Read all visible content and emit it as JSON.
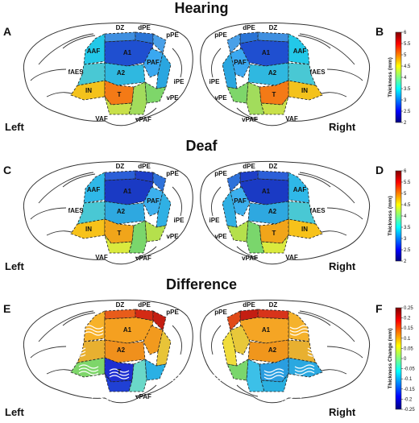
{
  "sections": [
    {
      "title": "Hearing"
    },
    {
      "title": "Deaf"
    },
    {
      "title": "Difference"
    }
  ],
  "panels": [
    {
      "label": "A",
      "hemisphere": "Left",
      "condition": "hearing",
      "regions": {
        "DZ": {
          "label": "DZ",
          "color": "#3f8fe0"
        },
        "dPE": {
          "label": "dPE",
          "color": "#2a74d6"
        },
        "pPE": {
          "label": "pPE",
          "color": "#4aa0e8"
        },
        "AAF": {
          "label": "AAF",
          "color": "#23c8e8"
        },
        "A1": {
          "label": "A1",
          "color": "#1f4fd0"
        },
        "PAF": {
          "label": "PAF",
          "color": "#3aa8f0"
        },
        "A2": {
          "label": "A2",
          "color": "#2fb8e0"
        },
        "iPE": {
          "label": "iPE",
          "color": "#2aa6e0"
        },
        "IN": {
          "label": "IN",
          "color": "#f4c21c"
        },
        "T": {
          "label": "T",
          "color": "#f47a16"
        },
        "vPE": {
          "label": "vPE",
          "color": "#7ed66a"
        },
        "VAF": {
          "label": "VAF",
          "color": "#c8e04a"
        },
        "vPAF": {
          "label": "vPAF",
          "color": "#a2dc5c"
        },
        "fAES": {
          "label": "fAES",
          "color": "#49c8d4"
        }
      }
    },
    {
      "label": "B",
      "hemisphere": "Right",
      "condition": "hearing",
      "regions": {
        "DZ": {
          "label": "DZ",
          "color": "#3f8fe0"
        },
        "dPE": {
          "label": "dPE",
          "color": "#2a74d6"
        },
        "pPE": {
          "label": "pPE",
          "color": "#4aa0e8"
        },
        "AAF": {
          "label": "AAF",
          "color": "#23c8e8"
        },
        "A1": {
          "label": "A1",
          "color": "#1f4fd0"
        },
        "PAF": {
          "label": "PAF",
          "color": "#3aa8f0"
        },
        "A2": {
          "label": "A2",
          "color": "#2fb8e0"
        },
        "iPE": {
          "label": "iPE",
          "color": "#2aa6e0"
        },
        "IN": {
          "label": "IN",
          "color": "#f4c21c"
        },
        "T": {
          "label": "T",
          "color": "#f47a16"
        },
        "vPE": {
          "label": "vPE",
          "color": "#7ed66a"
        },
        "VAF": {
          "label": "VAF",
          "color": "#c8e04a"
        },
        "vPAF": {
          "label": "vPAF",
          "color": "#a2dc5c"
        },
        "fAES": {
          "label": "fAES",
          "color": "#49c8d4"
        }
      }
    },
    {
      "label": "C",
      "hemisphere": "Left",
      "condition": "deaf",
      "regions": {
        "DZ": {
          "label": "DZ",
          "color": "#2b5fd8"
        },
        "dPE": {
          "label": "dPE",
          "color": "#1f3fc8"
        },
        "pPE": {
          "label": "pPE",
          "color": "#2f72da"
        },
        "AAF": {
          "label": "AAF",
          "color": "#2fb8e8"
        },
        "A1": {
          "label": "A1",
          "color": "#1a3ac4"
        },
        "PAF": {
          "label": "PAF",
          "color": "#3cb0ee"
        },
        "A2": {
          "label": "A2",
          "color": "#2ea8e0"
        },
        "iPE": {
          "label": "iPE",
          "color": "#30b0e4"
        },
        "IN": {
          "label": "IN",
          "color": "#f7c21a"
        },
        "T": {
          "label": "T",
          "color": "#f1a51a"
        },
        "vPE": {
          "label": "vPE",
          "color": "#b5e04c"
        },
        "VAF": {
          "label": "VAF",
          "color": "#daea3e"
        },
        "vPAF": {
          "label": "vPAF",
          "color": "#7ad66c"
        },
        "fAES": {
          "label": "fAES",
          "color": "#49c8d4"
        }
      }
    },
    {
      "label": "D",
      "hemisphere": "Right",
      "condition": "deaf",
      "regions": {
        "DZ": {
          "label": "DZ",
          "color": "#2b5fd8"
        },
        "dPE": {
          "label": "dPE",
          "color": "#1f3fc8"
        },
        "pPE": {
          "label": "pPE",
          "color": "#2f72da"
        },
        "AAF": {
          "label": "AAF",
          "color": "#2fb8e8"
        },
        "A1": {
          "label": "A1",
          "color": "#1a3ac4"
        },
        "PAF": {
          "label": "PAF",
          "color": "#3cb0ee"
        },
        "A2": {
          "label": "A2",
          "color": "#2ea8e0"
        },
        "iPE": {
          "label": "iPE",
          "color": "#30b0e4"
        },
        "IN": {
          "label": "IN",
          "color": "#f7c21a"
        },
        "T": {
          "label": "T",
          "color": "#f1a51a"
        },
        "vPE": {
          "label": "vPE",
          "color": "#b5e04c"
        },
        "VAF": {
          "label": "VAF",
          "color": "#daea3e"
        },
        "vPAF": {
          "label": "vPAF",
          "color": "#7ad66c"
        },
        "fAES": {
          "label": "fAES",
          "color": "#49c8d4"
        }
      }
    },
    {
      "label": "E",
      "hemisphere": "Left",
      "condition": "difference",
      "regions": {
        "DZ": {
          "label": "DZ",
          "color": "#e85c1a"
        },
        "dPE": {
          "label": "dPE",
          "color": "#d42a14"
        },
        "pPE": {
          "label": "pPE",
          "color": "#c41e12"
        },
        "AAF": {
          "label": "",
          "color": "#f7b22a"
        },
        "A1": {
          "label": "A1",
          "color": "#f5a020"
        },
        "PAF": {
          "label": "",
          "color": "#f29a1e"
        },
        "A2": {
          "label": "A2",
          "color": "#f0901c"
        },
        "iPE": {
          "label": "",
          "color": "#e8c438"
        },
        "IN": {
          "label": "",
          "color": "#7ed66a"
        },
        "T": {
          "label": "T",
          "color": "#1e2fd2"
        },
        "vPE": {
          "label": "",
          "color": "#2ab0e4"
        },
        "VAF": {
          "label": "",
          "color": "#2040d4"
        },
        "vPAF": {
          "label": "vPAF",
          "color": "#6ad8c8"
        },
        "fAES": {
          "label": "",
          "color": "#e8b030"
        }
      }
    },
    {
      "label": "F",
      "hemisphere": "Right",
      "condition": "difference",
      "regions": {
        "DZ": {
          "label": "DZ",
          "color": "#d8341a"
        },
        "dPE": {
          "label": "dPE",
          "color": "#c41e12"
        },
        "pPE": {
          "label": "pPE",
          "color": "#e04a18"
        },
        "AAF": {
          "label": "",
          "color": "#f5b22c"
        },
        "A1": {
          "label": "A1",
          "color": "#f5a524"
        },
        "PAF": {
          "label": "",
          "color": "#e8c83a"
        },
        "A2": {
          "label": "A2",
          "color": "#f0961c"
        },
        "iPE": {
          "label": "",
          "color": "#f0dc3c"
        },
        "IN": {
          "label": "",
          "color": "#2aa8e0"
        },
        "T": {
          "label": "",
          "color": "#2a9ee0"
        },
        "vPE": {
          "label": "",
          "color": "#7ad66c"
        },
        "VAF": {
          "label": "",
          "color": "#2ab0e0"
        },
        "vPAF": {
          "label": "",
          "color": "#3cc0e8"
        },
        "fAES": {
          "label": "",
          "color": "#e8b030"
        }
      }
    }
  ],
  "colorbars": [
    {
      "title": "Thickness (mm)",
      "ticks": [
        "6",
        "5.5",
        "5",
        "4.5",
        "4",
        "3.5",
        "3",
        "2.5",
        "2"
      ],
      "colors": [
        "#000080",
        "#0000ff",
        "#0080ff",
        "#00ffff",
        "#80ff80",
        "#ffff00",
        "#ff8000",
        "#ff0000",
        "#800000"
      ]
    },
    {
      "title": "Thickness (mm)",
      "ticks": [
        "6",
        "5.5",
        "5",
        "4.5",
        "4",
        "3.5",
        "3",
        "2.5",
        "2"
      ],
      "colors": [
        "#000080",
        "#0000ff",
        "#0080ff",
        "#00ffff",
        "#80ff80",
        "#ffff00",
        "#ff8000",
        "#ff0000",
        "#800000"
      ]
    },
    {
      "title": "Thickness Change (mm)",
      "ticks": [
        "0.25",
        "0.2",
        "0.15",
        "0.1",
        "0.05",
        "0",
        "-0.05",
        "-0.1",
        "-0.15",
        "-0.2",
        "-0.25"
      ],
      "colors": [
        "#000080",
        "#0000ff",
        "#0080ff",
        "#00ffff",
        "#80ff80",
        "#ffff00",
        "#ff8000",
        "#ff0000",
        "#800000"
      ]
    }
  ]
}
